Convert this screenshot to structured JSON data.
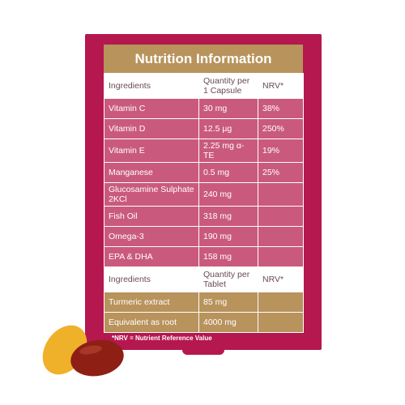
{
  "header": {
    "title": "Nutrition Information"
  },
  "table": {
    "sections": [
      {
        "header": [
          "Ingredients",
          "Quantity per 1 Capsule",
          "NRV*"
        ],
        "rows": [
          [
            "Vitamin C",
            "30 mg",
            "38%"
          ],
          [
            "Vitamin D",
            "12.5 µg",
            "250%"
          ],
          [
            "Vitamin E",
            "2.25 mg α-TE",
            "19%"
          ],
          [
            "Manganese",
            "0.5 mg",
            "25%"
          ],
          [
            "Glucosamine Sulphate 2KCl",
            "240 mg"
          ],
          [
            "Fish Oil",
            "318 mg"
          ],
          [
            "Omega-3",
            "190 mg"
          ],
          [
            "EPA & DHA",
            "158 mg"
          ]
        ]
      },
      {
        "header": [
          "Ingredients",
          "Quantity per Tablet",
          "NRV*"
        ],
        "rows": [
          [
            "Turmeric extract",
            "85 mg"
          ],
          [
            "Equivalent as root",
            "4000 mg"
          ]
        ]
      }
    ]
  },
  "footnote": "*NRV = Nutrient Reference Value"
}
